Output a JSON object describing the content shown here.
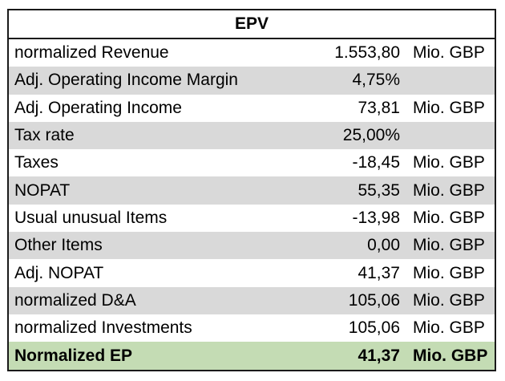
{
  "table": {
    "title": "EPV",
    "rows": [
      {
        "label": "normalized Revenue",
        "value": "1.553,80",
        "unit": "Mio. GBP",
        "shaded": false
      },
      {
        "label": "Adj. Operating Income Margin",
        "value": "4,75%",
        "unit": "",
        "shaded": true
      },
      {
        "label": "Adj. Operating Income",
        "value": "73,81",
        "unit": "Mio. GBP",
        "shaded": false
      },
      {
        "label": "Tax rate",
        "value": "25,00%",
        "unit": "",
        "shaded": true
      },
      {
        "label": "Taxes",
        "value": "-18,45",
        "unit": "Mio. GBP",
        "shaded": false
      },
      {
        "label": "NOPAT",
        "value": "55,35",
        "unit": "Mio. GBP",
        "shaded": true
      },
      {
        "label": "Usual unusual Items",
        "value": "-13,98",
        "unit": "Mio. GBP",
        "shaded": false
      },
      {
        "label": "Other Items",
        "value": "0,00",
        "unit": "Mio. GBP",
        "shaded": true
      },
      {
        "label": "Adj. NOPAT",
        "value": "41,37",
        "unit": "Mio. GBP",
        "shaded": false
      },
      {
        "label": "normalized D&A",
        "value": "105,06",
        "unit": "Mio. GBP",
        "shaded": true
      },
      {
        "label": "normalized Investments",
        "value": "105,06",
        "unit": "Mio. GBP",
        "shaded": false
      }
    ],
    "total": {
      "label": "Normalized EP",
      "value": "41,37",
      "unit": "Mio. GBP"
    }
  },
  "colors": {
    "shaded_row": "#d9d9d9",
    "total_row": "#c4dcb4",
    "border": "#1a1a1a"
  }
}
